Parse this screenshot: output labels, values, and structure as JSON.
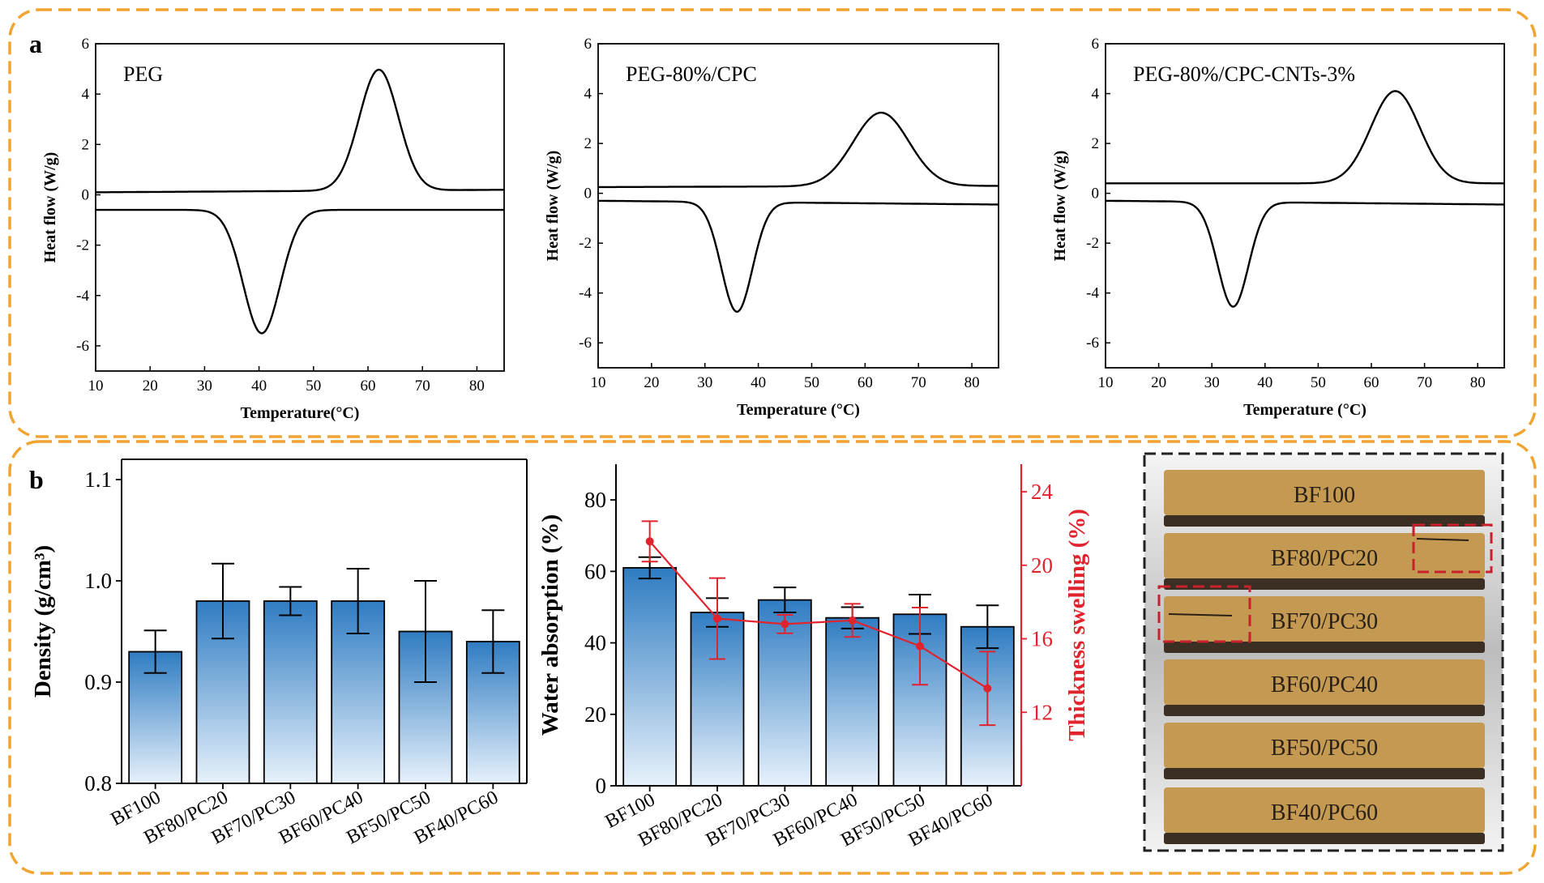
{
  "colors": {
    "panel_border": "#f0a533",
    "bar_top": "#2f7cc2",
    "bar_bottom": "#e7f1fb",
    "line_red": "#e0242e",
    "axis": "#000000",
    "photo_border": "#222222",
    "photo_highlight": "#c8202c",
    "board_top": "#c49a52",
    "board_side": "#3b2e22"
  },
  "panels": {
    "a": {
      "label": "a"
    },
    "b": {
      "label": "b"
    }
  },
  "chart_data": [
    {
      "id": "dsc-peg",
      "type": "line",
      "title": "PEG",
      "xlabel": "Temperature(°C)",
      "ylabel": "Heat flow (W/g)",
      "xlim": [
        10,
        85
      ],
      "ylim": [
        -7,
        6
      ],
      "xticks": [
        10,
        20,
        30,
        40,
        50,
        60,
        70,
        80
      ],
      "yticks": [
        -6,
        -4,
        -2,
        0,
        2,
        4,
        6
      ],
      "series": [
        {
          "name": "heating",
          "baseline": [
            0.1,
            0.2
          ],
          "peak_center": 62,
          "peak_height": 4.8,
          "peak_width": 3.6
        },
        {
          "name": "cooling",
          "baseline": [
            -0.6,
            -0.6
          ],
          "peak_center": 40.5,
          "peak_height": -4.9,
          "peak_width": 3.4
        }
      ]
    },
    {
      "id": "dsc-peg-cpc",
      "type": "line",
      "title": "PEG-80%/CPC",
      "xlabel": "Temperature (°C)",
      "ylabel": "Heat flow (W/g)",
      "xlim": [
        10,
        85
      ],
      "ylim": [
        -7,
        6
      ],
      "xticks": [
        10,
        20,
        30,
        40,
        50,
        60,
        70,
        80
      ],
      "yticks": [
        -6,
        -4,
        -2,
        0,
        2,
        4,
        6
      ],
      "series": [
        {
          "name": "heating",
          "baseline": [
            0.25,
            0.3
          ],
          "peak_center": 63,
          "peak_height": 2.95,
          "peak_width": 5.2
        },
        {
          "name": "cooling",
          "baseline": [
            -0.3,
            -0.45
          ],
          "peak_center": 36,
          "peak_height": -4.4,
          "peak_width": 2.9
        }
      ]
    },
    {
      "id": "dsc-peg-cpc-cnts",
      "type": "line",
      "title": "PEG-80%/CPC-CNTs-3%",
      "xlabel": "Temperature (°C)",
      "ylabel": "Heat flow (W/g)",
      "xlim": [
        10,
        85
      ],
      "ylim": [
        -7,
        6
      ],
      "xticks": [
        10,
        20,
        30,
        40,
        50,
        60,
        70,
        80
      ],
      "yticks": [
        -6,
        -4,
        -2,
        0,
        2,
        4,
        6
      ],
      "series": [
        {
          "name": "heating",
          "baseline": [
            0.4,
            0.4
          ],
          "peak_center": 64.5,
          "peak_height": 3.7,
          "peak_width": 4.6
        },
        {
          "name": "cooling",
          "baseline": [
            -0.3,
            -0.45
          ],
          "peak_center": 34,
          "peak_height": -4.2,
          "peak_width": 2.9
        }
      ]
    },
    {
      "id": "density",
      "type": "bar",
      "title": "",
      "xlabel": "",
      "ylabel": "Density (g/cm³)",
      "ylim": [
        0.8,
        1.12
      ],
      "yticks": [
        0.8,
        0.9,
        1.0,
        1.1
      ],
      "ytick_labels": [
        "0.8",
        "0.9",
        "1.0",
        "1.1"
      ],
      "categories": [
        "BF100",
        "BF80/PC20",
        "BF70/PC30",
        "BF60/PC40",
        "BF50/PC50",
        "BF40/PC60"
      ],
      "values": [
        0.93,
        0.98,
        0.98,
        0.98,
        0.95,
        0.94
      ],
      "errors": [
        0.021,
        0.037,
        0.014,
        0.032,
        0.05,
        0.031
      ]
    },
    {
      "id": "water-absorption",
      "type": "bar",
      "title": "",
      "xlabel": "",
      "ylabel": "Water absorption (%)",
      "ylabel_right": "Thickness swelling (%)",
      "ylim": [
        0,
        90
      ],
      "ylim_right": [
        8,
        25.5
      ],
      "yticks": [
        0,
        20,
        40,
        60,
        80
      ],
      "yticks_right": [
        12,
        16,
        20,
        24
      ],
      "categories": [
        "BF100",
        "BF80/PC20",
        "BF70/PC30",
        "BF60/PC40",
        "BF50/PC50",
        "BF40/PC60"
      ],
      "values": [
        61,
        48.5,
        52,
        47,
        48,
        44.5
      ],
      "errors": [
        3,
        4,
        3.5,
        3,
        5.5,
        6
      ],
      "series_right": {
        "name": "Thickness swelling",
        "values": [
          21.3,
          17.1,
          16.8,
          17.0,
          15.6,
          13.3
        ],
        "errors": [
          1.1,
          2.2,
          0.5,
          0.9,
          2.1,
          2.0
        ]
      }
    }
  ],
  "photo": {
    "boards": [
      "BF100",
      "BF80/PC20",
      "BF70/PC30",
      "BF60/PC40",
      "BF50/PC50",
      "BF40/PC60"
    ]
  }
}
